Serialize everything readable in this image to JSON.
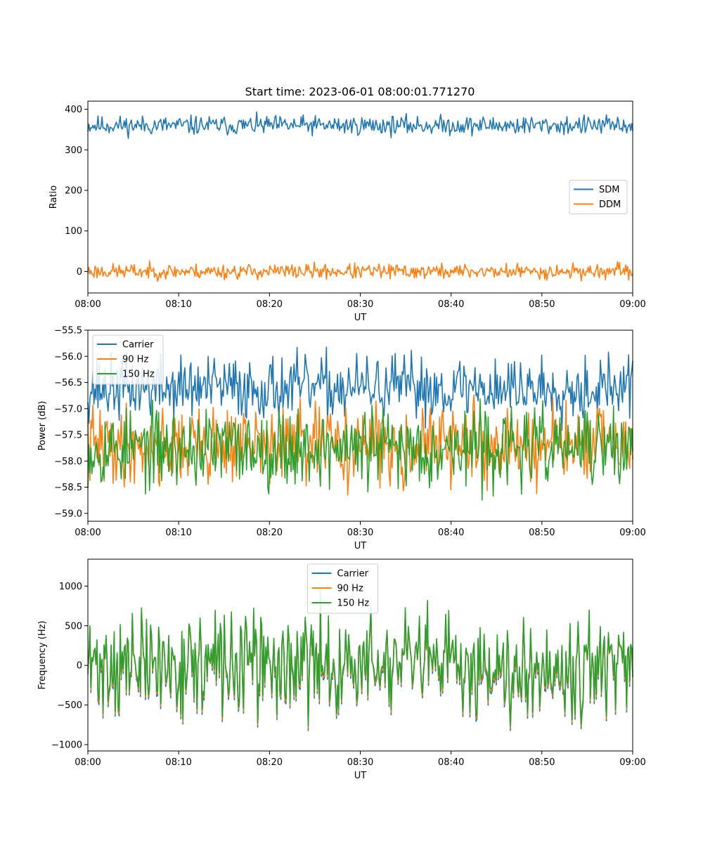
{
  "chart_data": [
    {
      "type": "line",
      "title": "Start time: 2023-06-01 08:00:01.771270",
      "xlabel": "UT",
      "ylabel": "Ratio",
      "xlim": [
        "08:00",
        "09:00"
      ],
      "ylim": [
        -53,
        420
      ],
      "xticks": [
        "08:00",
        "08:10",
        "08:20",
        "08:30",
        "08:40",
        "08:50",
        "09:00"
      ],
      "yticks": [
        0,
        100,
        200,
        300,
        400
      ],
      "ytick_labels": [
        "0",
        "100",
        "200",
        "300",
        "400"
      ],
      "grid": false,
      "legend": {
        "position": "center-right",
        "entries": [
          "SDM",
          "DDM"
        ]
      },
      "series": [
        {
          "name": "SDM",
          "color": "#1f77b4",
          "mean": 360,
          "amplitude": 35,
          "seed": 11
        },
        {
          "name": "DDM",
          "color": "#ff7f0e",
          "mean": 0,
          "amplitude": 28,
          "seed": 23
        }
      ]
    },
    {
      "type": "line",
      "title": "",
      "xlabel": "UT",
      "ylabel": "Power (dB)",
      "xlim": [
        "08:00",
        "09:00"
      ],
      "ylim": [
        -59.15,
        -55.5
      ],
      "xticks": [
        "08:00",
        "08:10",
        "08:20",
        "08:30",
        "08:40",
        "08:50",
        "09:00"
      ],
      "yticks": [
        -59.0,
        -58.5,
        -58.0,
        -57.5,
        -57.0,
        -56.5,
        -56.0,
        -55.5
      ],
      "ytick_labels": [
        "−59.0",
        "−58.5",
        "−58.0",
        "−57.5",
        "−57.0",
        "−56.5",
        "−56.0",
        "−55.5"
      ],
      "grid": false,
      "legend": {
        "position": "upper-left",
        "entries": [
          "Carrier",
          "90 Hz",
          "150 Hz"
        ]
      },
      "series": [
        {
          "name": "Carrier",
          "color": "#1f77b4",
          "mean": -56.6,
          "amplitude": 0.9,
          "seed": 37
        },
        {
          "name": "90 Hz",
          "color": "#ff7f0e",
          "mean": -57.7,
          "amplitude": 1.1,
          "seed": 41
        },
        {
          "name": "150 Hz",
          "color": "#2ca02c",
          "mean": -57.75,
          "amplitude": 1.1,
          "seed": 53
        }
      ]
    },
    {
      "type": "line",
      "title": "",
      "xlabel": "UT",
      "ylabel": "Frequency (Hz)",
      "xlim": [
        "08:00",
        "09:00"
      ],
      "ylim": [
        -1080,
        1340
      ],
      "xticks": [
        "08:00",
        "08:10",
        "08:20",
        "08:30",
        "08:40",
        "08:50",
        "09:00"
      ],
      "yticks": [
        -1000,
        -500,
        0,
        500,
        1000
      ],
      "ytick_labels": [
        "−1000",
        "−500",
        "0",
        "500",
        "1000"
      ],
      "grid": false,
      "legend": {
        "position": "upper-center",
        "entries": [
          "Carrier",
          "90 Hz",
          "150 Hz"
        ]
      },
      "series": [
        {
          "name": "Carrier",
          "color": "#1f77b4",
          "mean": 0,
          "amplitude": 900,
          "seed": 71,
          "offset": -60
        },
        {
          "name": "90 Hz",
          "color": "#ff7f0e",
          "mean": 0,
          "amplitude": 900,
          "seed": 71,
          "offset": -30
        },
        {
          "name": "150 Hz",
          "color": "#2ca02c",
          "mean": 0,
          "amplitude": 900,
          "seed": 71,
          "offset": 0
        }
      ]
    }
  ]
}
